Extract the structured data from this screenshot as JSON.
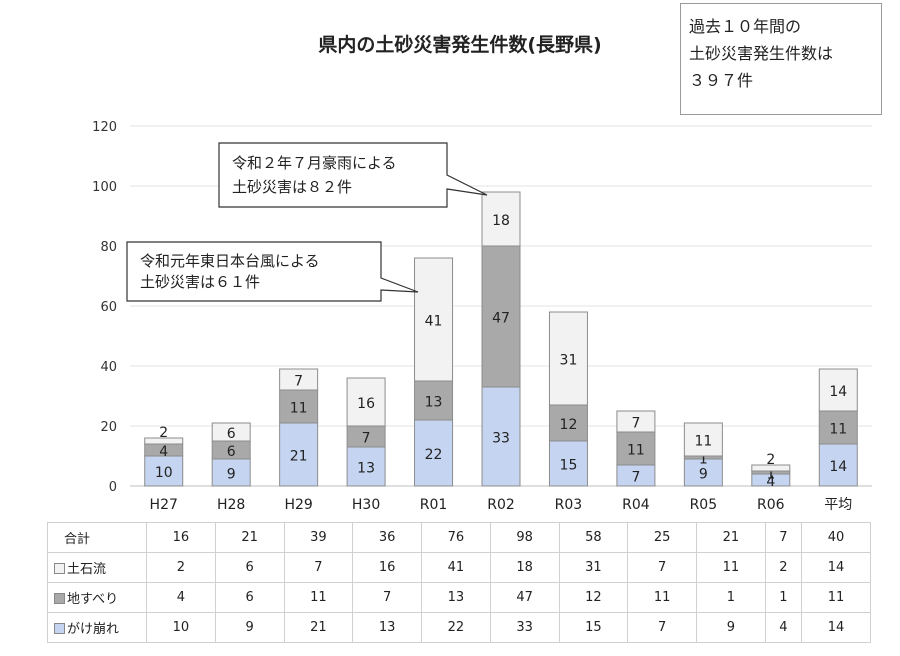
{
  "title": "県内の土砂災害発生件数(長野県)",
  "summary_box": {
    "lines": [
      "過去１０年間の",
      "土砂災害発生件数は",
      "３９７件"
    ]
  },
  "callouts": [
    {
      "lines": [
        "令和２年７月豪雨による",
        "土砂災害は８２件"
      ]
    },
    {
      "lines": [
        "令和元年東日本台風による",
        "土砂災害は６１件"
      ]
    }
  ],
  "colors": {
    "gake": "#c5d5f1",
    "jisuberi": "#a9a9a9",
    "dosekiryu": "#f2f2f2"
  },
  "chart_data": {
    "type": "bar",
    "stacked": true,
    "categories": [
      "H27",
      "H28",
      "H29",
      "H30",
      "R01",
      "R02",
      "R03",
      "R04",
      "R05",
      "R06",
      "平均"
    ],
    "ylim": [
      0,
      120
    ],
    "yticks": [
      0,
      20,
      40,
      60,
      80,
      100,
      120
    ],
    "grid": true,
    "series": [
      {
        "name": "がけ崩れ",
        "values": [
          10,
          9,
          21,
          13,
          22,
          33,
          15,
          7,
          9,
          4,
          14
        ]
      },
      {
        "name": "地すべり",
        "values": [
          4,
          6,
          11,
          7,
          13,
          47,
          12,
          11,
          1,
          1,
          11
        ]
      },
      {
        "name": "土石流",
        "values": [
          2,
          6,
          7,
          16,
          41,
          18,
          31,
          7,
          11,
          2,
          14
        ]
      }
    ]
  },
  "table": {
    "rows": [
      {
        "label": "合計",
        "key": "",
        "values": [
          16,
          21,
          39,
          36,
          76,
          98,
          58,
          25,
          21,
          7,
          40
        ]
      },
      {
        "label": "土石流",
        "key": "dosekiryu",
        "values": [
          2,
          6,
          7,
          16,
          41,
          18,
          31,
          7,
          11,
          2,
          14
        ]
      },
      {
        "label": "地すべり",
        "key": "jisuberi",
        "values": [
          4,
          6,
          11,
          7,
          13,
          47,
          12,
          11,
          1,
          1,
          11
        ]
      },
      {
        "label": "がけ崩れ",
        "key": "gake",
        "values": [
          10,
          9,
          21,
          13,
          22,
          33,
          15,
          7,
          9,
          4,
          14
        ]
      }
    ]
  }
}
